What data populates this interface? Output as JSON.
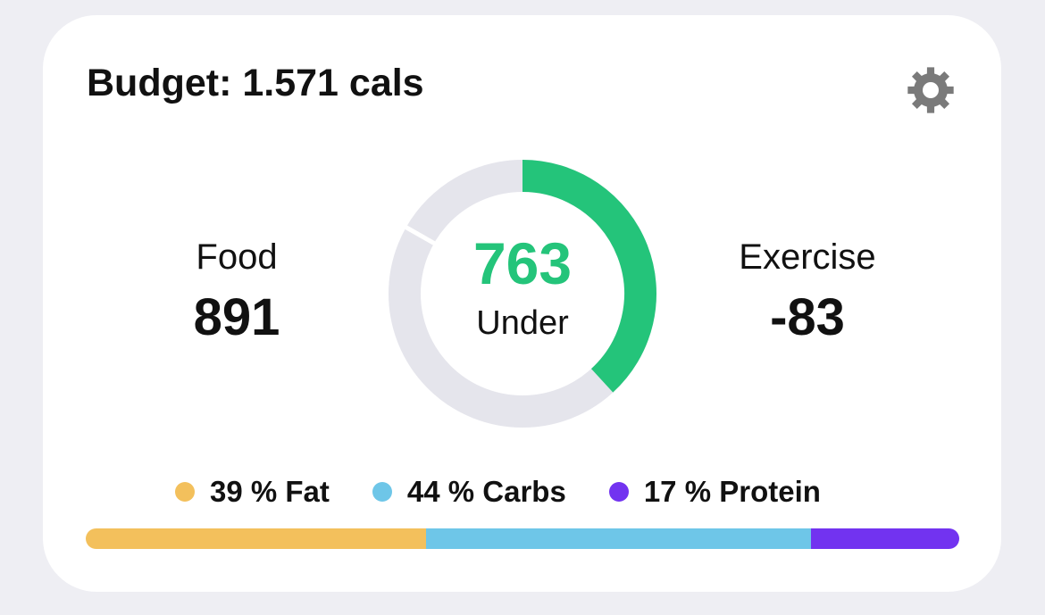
{
  "budget": {
    "title": "Budget: 1.571 cals"
  },
  "food": {
    "label": "Food",
    "value": "891"
  },
  "exercise": {
    "label": "Exercise",
    "value": "-83"
  },
  "remaining": {
    "value": "763",
    "label": "Under",
    "fraction": 0.382
  },
  "colors": {
    "accent_green": "#24c47a",
    "ring_track": "#e5e5ec",
    "fat": "#f3c05c",
    "carbs": "#6ec6e8",
    "protein": "#7233f0",
    "gear": "#7a7a7a"
  },
  "macros": [
    {
      "label": "39 % Fat",
      "percent": 39,
      "color": "#f3c05c"
    },
    {
      "label": "44 % Carbs",
      "percent": 44,
      "color": "#6ec6e8"
    },
    {
      "label": "17 % Protein",
      "percent": 17,
      "color": "#7233f0"
    }
  ],
  "icons": {
    "settings": "gear-icon"
  }
}
